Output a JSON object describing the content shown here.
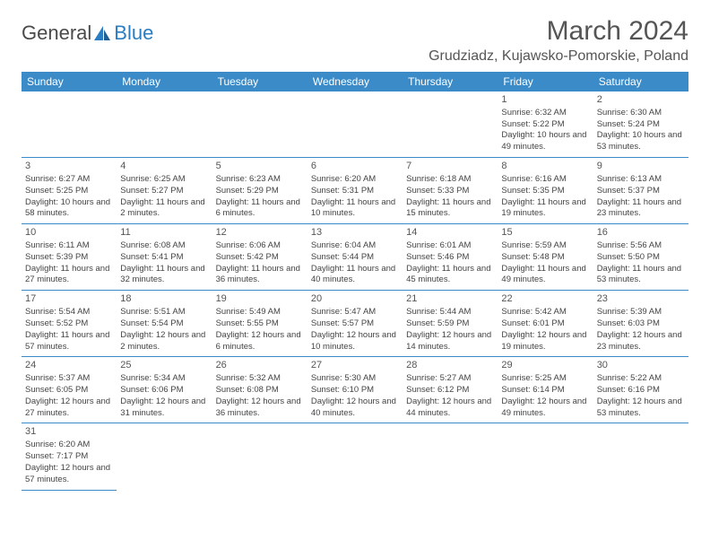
{
  "logo": {
    "part1": "General",
    "part2": "Blue"
  },
  "header": {
    "month_title": "March 2024",
    "location": "Grudziadz, Kujawsko-Pomorskie, Poland"
  },
  "colors": {
    "header_bg": "#3b8bc8",
    "header_text": "#ffffff",
    "cell_border": "#3b8bc8",
    "text": "#444444",
    "title_text": "#555555",
    "logo_blue": "#2a7dc0"
  },
  "weekdays": [
    "Sunday",
    "Monday",
    "Tuesday",
    "Wednesday",
    "Thursday",
    "Friday",
    "Saturday"
  ],
  "weeks": [
    [
      {
        "day": "",
        "sunrise": "",
        "sunset": "",
        "daylight": ""
      },
      {
        "day": "",
        "sunrise": "",
        "sunset": "",
        "daylight": ""
      },
      {
        "day": "",
        "sunrise": "",
        "sunset": "",
        "daylight": ""
      },
      {
        "day": "",
        "sunrise": "",
        "sunset": "",
        "daylight": ""
      },
      {
        "day": "",
        "sunrise": "",
        "sunset": "",
        "daylight": ""
      },
      {
        "day": "1",
        "sunrise": "Sunrise: 6:32 AM",
        "sunset": "Sunset: 5:22 PM",
        "daylight": "Daylight: 10 hours and 49 minutes."
      },
      {
        "day": "2",
        "sunrise": "Sunrise: 6:30 AM",
        "sunset": "Sunset: 5:24 PM",
        "daylight": "Daylight: 10 hours and 53 minutes."
      }
    ],
    [
      {
        "day": "3",
        "sunrise": "Sunrise: 6:27 AM",
        "sunset": "Sunset: 5:25 PM",
        "daylight": "Daylight: 10 hours and 58 minutes."
      },
      {
        "day": "4",
        "sunrise": "Sunrise: 6:25 AM",
        "sunset": "Sunset: 5:27 PM",
        "daylight": "Daylight: 11 hours and 2 minutes."
      },
      {
        "day": "5",
        "sunrise": "Sunrise: 6:23 AM",
        "sunset": "Sunset: 5:29 PM",
        "daylight": "Daylight: 11 hours and 6 minutes."
      },
      {
        "day": "6",
        "sunrise": "Sunrise: 6:20 AM",
        "sunset": "Sunset: 5:31 PM",
        "daylight": "Daylight: 11 hours and 10 minutes."
      },
      {
        "day": "7",
        "sunrise": "Sunrise: 6:18 AM",
        "sunset": "Sunset: 5:33 PM",
        "daylight": "Daylight: 11 hours and 15 minutes."
      },
      {
        "day": "8",
        "sunrise": "Sunrise: 6:16 AM",
        "sunset": "Sunset: 5:35 PM",
        "daylight": "Daylight: 11 hours and 19 minutes."
      },
      {
        "day": "9",
        "sunrise": "Sunrise: 6:13 AM",
        "sunset": "Sunset: 5:37 PM",
        "daylight": "Daylight: 11 hours and 23 minutes."
      }
    ],
    [
      {
        "day": "10",
        "sunrise": "Sunrise: 6:11 AM",
        "sunset": "Sunset: 5:39 PM",
        "daylight": "Daylight: 11 hours and 27 minutes."
      },
      {
        "day": "11",
        "sunrise": "Sunrise: 6:08 AM",
        "sunset": "Sunset: 5:41 PM",
        "daylight": "Daylight: 11 hours and 32 minutes."
      },
      {
        "day": "12",
        "sunrise": "Sunrise: 6:06 AM",
        "sunset": "Sunset: 5:42 PM",
        "daylight": "Daylight: 11 hours and 36 minutes."
      },
      {
        "day": "13",
        "sunrise": "Sunrise: 6:04 AM",
        "sunset": "Sunset: 5:44 PM",
        "daylight": "Daylight: 11 hours and 40 minutes."
      },
      {
        "day": "14",
        "sunrise": "Sunrise: 6:01 AM",
        "sunset": "Sunset: 5:46 PM",
        "daylight": "Daylight: 11 hours and 45 minutes."
      },
      {
        "day": "15",
        "sunrise": "Sunrise: 5:59 AM",
        "sunset": "Sunset: 5:48 PM",
        "daylight": "Daylight: 11 hours and 49 minutes."
      },
      {
        "day": "16",
        "sunrise": "Sunrise: 5:56 AM",
        "sunset": "Sunset: 5:50 PM",
        "daylight": "Daylight: 11 hours and 53 minutes."
      }
    ],
    [
      {
        "day": "17",
        "sunrise": "Sunrise: 5:54 AM",
        "sunset": "Sunset: 5:52 PM",
        "daylight": "Daylight: 11 hours and 57 minutes."
      },
      {
        "day": "18",
        "sunrise": "Sunrise: 5:51 AM",
        "sunset": "Sunset: 5:54 PM",
        "daylight": "Daylight: 12 hours and 2 minutes."
      },
      {
        "day": "19",
        "sunrise": "Sunrise: 5:49 AM",
        "sunset": "Sunset: 5:55 PM",
        "daylight": "Daylight: 12 hours and 6 minutes."
      },
      {
        "day": "20",
        "sunrise": "Sunrise: 5:47 AM",
        "sunset": "Sunset: 5:57 PM",
        "daylight": "Daylight: 12 hours and 10 minutes."
      },
      {
        "day": "21",
        "sunrise": "Sunrise: 5:44 AM",
        "sunset": "Sunset: 5:59 PM",
        "daylight": "Daylight: 12 hours and 14 minutes."
      },
      {
        "day": "22",
        "sunrise": "Sunrise: 5:42 AM",
        "sunset": "Sunset: 6:01 PM",
        "daylight": "Daylight: 12 hours and 19 minutes."
      },
      {
        "day": "23",
        "sunrise": "Sunrise: 5:39 AM",
        "sunset": "Sunset: 6:03 PM",
        "daylight": "Daylight: 12 hours and 23 minutes."
      }
    ],
    [
      {
        "day": "24",
        "sunrise": "Sunrise: 5:37 AM",
        "sunset": "Sunset: 6:05 PM",
        "daylight": "Daylight: 12 hours and 27 minutes."
      },
      {
        "day": "25",
        "sunrise": "Sunrise: 5:34 AM",
        "sunset": "Sunset: 6:06 PM",
        "daylight": "Daylight: 12 hours and 31 minutes."
      },
      {
        "day": "26",
        "sunrise": "Sunrise: 5:32 AM",
        "sunset": "Sunset: 6:08 PM",
        "daylight": "Daylight: 12 hours and 36 minutes."
      },
      {
        "day": "27",
        "sunrise": "Sunrise: 5:30 AM",
        "sunset": "Sunset: 6:10 PM",
        "daylight": "Daylight: 12 hours and 40 minutes."
      },
      {
        "day": "28",
        "sunrise": "Sunrise: 5:27 AM",
        "sunset": "Sunset: 6:12 PM",
        "daylight": "Daylight: 12 hours and 44 minutes."
      },
      {
        "day": "29",
        "sunrise": "Sunrise: 5:25 AM",
        "sunset": "Sunset: 6:14 PM",
        "daylight": "Daylight: 12 hours and 49 minutes."
      },
      {
        "day": "30",
        "sunrise": "Sunrise: 5:22 AM",
        "sunset": "Sunset: 6:16 PM",
        "daylight": "Daylight: 12 hours and 53 minutes."
      }
    ],
    [
      {
        "day": "31",
        "sunrise": "Sunrise: 6:20 AM",
        "sunset": "Sunset: 7:17 PM",
        "daylight": "Daylight: 12 hours and 57 minutes."
      },
      {
        "day": "",
        "sunrise": "",
        "sunset": "",
        "daylight": "",
        "trailing": true
      },
      {
        "day": "",
        "sunrise": "",
        "sunset": "",
        "daylight": "",
        "trailing": true
      },
      {
        "day": "",
        "sunrise": "",
        "sunset": "",
        "daylight": "",
        "trailing": true
      },
      {
        "day": "",
        "sunrise": "",
        "sunset": "",
        "daylight": "",
        "trailing": true
      },
      {
        "day": "",
        "sunrise": "",
        "sunset": "",
        "daylight": "",
        "trailing": true
      },
      {
        "day": "",
        "sunrise": "",
        "sunset": "",
        "daylight": "",
        "trailing": true
      }
    ]
  ]
}
